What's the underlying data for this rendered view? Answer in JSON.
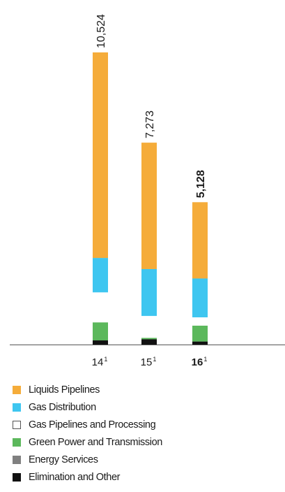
{
  "chart_data": {
    "type": "bar",
    "stacked": true,
    "categories": [
      {
        "year": "14",
        "footnote": "1",
        "bold": false
      },
      {
        "year": "15",
        "footnote": "1",
        "bold": false
      },
      {
        "year": "16",
        "footnote": "1",
        "bold": true
      }
    ],
    "totals": [
      "10,524",
      "7,273",
      "5,128"
    ],
    "total_values": [
      10524,
      7273,
      5128
    ],
    "ylim": [
      0,
      11500
    ],
    "grid": false,
    "legend_placement": "bottom",
    "series": [
      {
        "name": "Elimination and Other",
        "color": "#111111",
        "values": [
          150,
          190,
          110
        ]
      },
      {
        "name": "Energy Services",
        "color": "#808080",
        "values": [
          0,
          0,
          0
        ]
      },
      {
        "name": "Green Power and Transmission",
        "color": "#5cb85c",
        "values": [
          650,
          50,
          570
        ]
      },
      {
        "name": "Gas Pipelines and Processing",
        "color": "#ffffff",
        "values": [
          1080,
          790,
          300
        ]
      },
      {
        "name": "Gas Distribution",
        "color": "#3ec6f0",
        "values": [
          1240,
          1690,
          1400
        ]
      },
      {
        "name": "Liquids Pipelines",
        "color": "#f5ac3a",
        "values": [
          7404,
          4553,
          2748
        ]
      }
    ]
  },
  "legend": [
    {
      "label": "Liquids Pipelines",
      "color": "#f5ac3a",
      "outline": false
    },
    {
      "label": "Gas Distribution",
      "color": "#3ec6f0",
      "outline": false
    },
    {
      "label": "Gas Pipelines and Processing",
      "color": "#ffffff",
      "outline": true
    },
    {
      "label": "Green Power and Transmission",
      "color": "#5cb85c",
      "outline": false
    },
    {
      "label": "Energy Services",
      "color": "#808080",
      "outline": false
    },
    {
      "label": "Elimination and Other",
      "color": "#111111",
      "outline": false
    }
  ]
}
